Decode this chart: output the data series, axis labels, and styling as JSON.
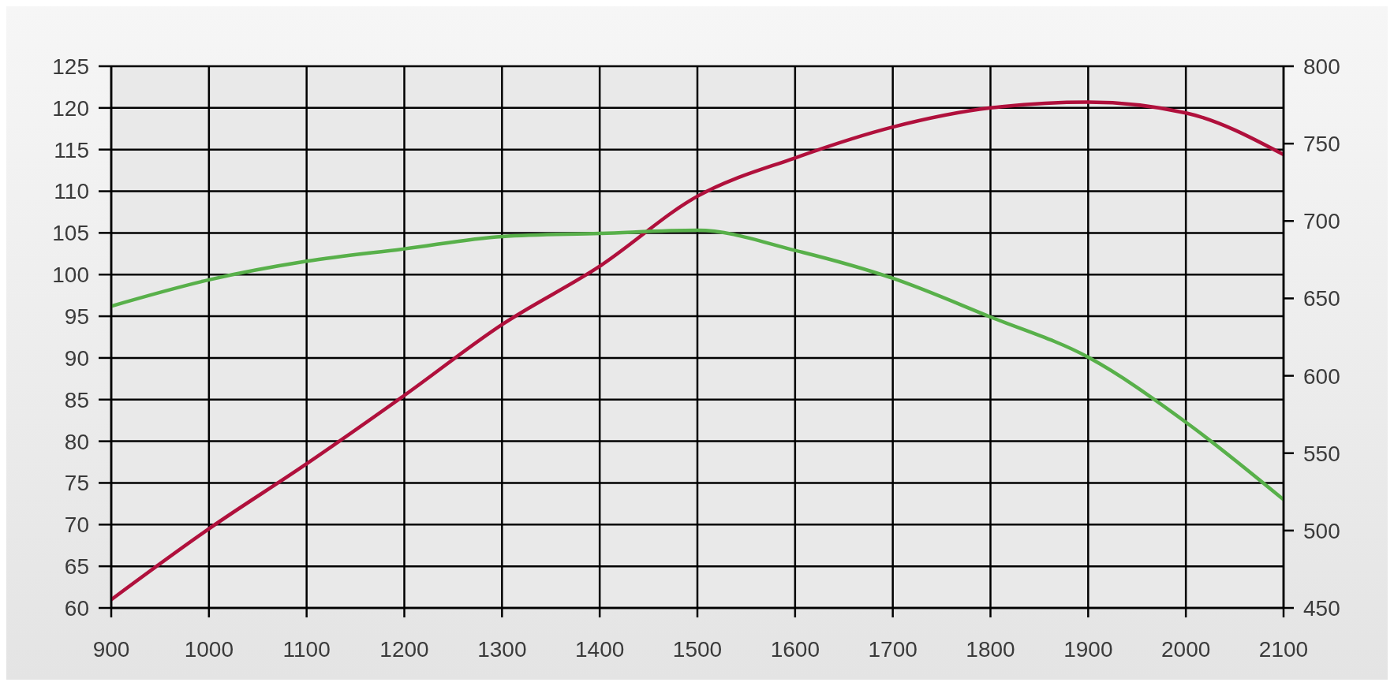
{
  "chart_data": {
    "type": "line",
    "x": [
      900,
      1000,
      1100,
      1200,
      1300,
      1400,
      1500,
      1600,
      1700,
      1800,
      1900,
      2000,
      2100
    ],
    "series": [
      {
        "color": "#b0103c",
        "values": [
          61,
          69.5,
          77.3,
          85.5,
          94,
          101,
          109.4,
          114,
          117.7,
          120,
          120.7,
          119.4,
          114.4
        ]
      },
      {
        "color": "#58b04a",
        "axis": "y2",
        "values": [
          645,
          662,
          674,
          682,
          690,
          692,
          694,
          681,
          663,
          638,
          612,
          570,
          520
        ]
      }
    ],
    "xlim": [
      900,
      2100
    ],
    "xticks": [
      900,
      1000,
      1100,
      1200,
      1300,
      1400,
      1500,
      1600,
      1700,
      1800,
      1900,
      2000,
      2100
    ],
    "ylim": [
      60,
      125
    ],
    "yticks": [
      60,
      65,
      70,
      75,
      80,
      85,
      90,
      95,
      100,
      105,
      110,
      115,
      120,
      125
    ],
    "y2lim": [
      450,
      800
    ],
    "y2ticks": [
      450,
      500,
      550,
      600,
      650,
      700,
      750,
      800
    ],
    "grid": true
  }
}
